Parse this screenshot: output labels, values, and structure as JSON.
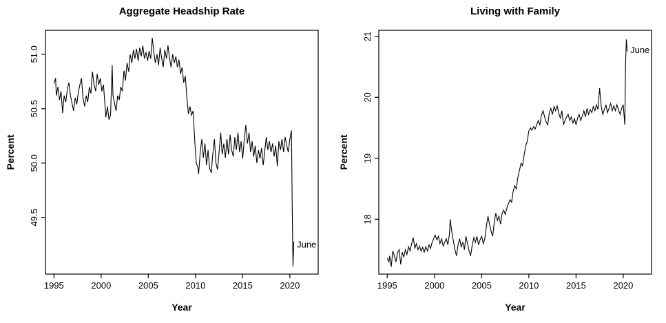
{
  "page": {
    "background": "#ffffff",
    "foreground": "#000000"
  },
  "chart_data": [
    {
      "type": "line",
      "title": "Aggregate Headship Rate",
      "xlabel": "Year",
      "ylabel": "Percent",
      "legend": null,
      "grid": false,
      "line_color": "#000000",
      "xlim": [
        1994.1,
        2023.0
      ],
      "ylim": [
        48.98,
        51.22
      ],
      "x_ticks": [
        1995,
        2000,
        2005,
        2010,
        2015,
        2020
      ],
      "x_tick_labels": [
        "1995",
        "2000",
        "2005",
        "2010",
        "2015",
        "2020"
      ],
      "y_ticks": [
        49.5,
        50.0,
        50.5,
        51.0
      ],
      "y_tick_labels": [
        "49.5",
        "50.0",
        "50.5",
        "51.0"
      ],
      "annotation": {
        "text": "June",
        "x": 2020.6,
        "y": 49.25
      },
      "points": [
        [
          1995.0,
          50.73
        ],
        [
          1995.17,
          50.78
        ],
        [
          1995.25,
          50.62
        ],
        [
          1995.42,
          50.7
        ],
        [
          1995.58,
          50.58
        ],
        [
          1995.75,
          50.66
        ],
        [
          1995.92,
          50.46
        ],
        [
          1996.08,
          50.62
        ],
        [
          1996.25,
          50.56
        ],
        [
          1996.42,
          50.68
        ],
        [
          1996.58,
          50.74
        ],
        [
          1996.75,
          50.62
        ],
        [
          1996.92,
          50.55
        ],
        [
          1997.08,
          50.48
        ],
        [
          1997.25,
          50.6
        ],
        [
          1997.42,
          50.54
        ],
        [
          1997.58,
          50.65
        ],
        [
          1997.75,
          50.72
        ],
        [
          1997.92,
          50.78
        ],
        [
          1998.08,
          50.6
        ],
        [
          1998.25,
          50.52
        ],
        [
          1998.42,
          50.62
        ],
        [
          1998.58,
          50.56
        ],
        [
          1998.75,
          50.7
        ],
        [
          1998.92,
          50.64
        ],
        [
          1999.08,
          50.84
        ],
        [
          1999.25,
          50.72
        ],
        [
          1999.42,
          50.66
        ],
        [
          1999.58,
          50.82
        ],
        [
          1999.75,
          50.72
        ],
        [
          1999.92,
          50.78
        ],
        [
          2000.08,
          50.66
        ],
        [
          2000.25,
          50.72
        ],
        [
          2000.33,
          50.62
        ],
        [
          2000.5,
          50.42
        ],
        [
          2000.67,
          50.52
        ],
        [
          2000.83,
          50.4
        ],
        [
          2001.0,
          50.44
        ],
        [
          2001.17,
          50.9
        ],
        [
          2001.25,
          50.62
        ],
        [
          2001.42,
          50.55
        ],
        [
          2001.58,
          50.48
        ],
        [
          2001.75,
          50.62
        ],
        [
          2001.92,
          50.58
        ],
        [
          2002.08,
          50.7
        ],
        [
          2002.25,
          50.66
        ],
        [
          2002.42,
          50.85
        ],
        [
          2002.58,
          50.76
        ],
        [
          2002.75,
          50.92
        ],
        [
          2002.92,
          50.84
        ],
        [
          2003.08,
          51.0
        ],
        [
          2003.25,
          50.92
        ],
        [
          2003.42,
          51.04
        ],
        [
          2003.58,
          50.96
        ],
        [
          2003.75,
          51.05
        ],
        [
          2003.92,
          50.94
        ],
        [
          2004.08,
          51.06
        ],
        [
          2004.25,
          50.98
        ],
        [
          2004.42,
          51.08
        ],
        [
          2004.58,
          50.96
        ],
        [
          2004.75,
          51.02
        ],
        [
          2004.92,
          50.94
        ],
        [
          2005.08,
          51.03
        ],
        [
          2005.25,
          50.96
        ],
        [
          2005.42,
          51.15
        ],
        [
          2005.58,
          51.02
        ],
        [
          2005.75,
          50.92
        ],
        [
          2005.92,
          51.0
        ],
        [
          2006.08,
          50.9
        ],
        [
          2006.25,
          51.06
        ],
        [
          2006.42,
          50.96
        ],
        [
          2006.58,
          50.88
        ],
        [
          2006.75,
          51.04
        ],
        [
          2006.92,
          50.96
        ],
        [
          2007.08,
          51.08
        ],
        [
          2007.25,
          50.96
        ],
        [
          2007.42,
          50.88
        ],
        [
          2007.58,
          51.0
        ],
        [
          2007.75,
          50.92
        ],
        [
          2007.92,
          50.98
        ],
        [
          2008.08,
          50.88
        ],
        [
          2008.25,
          50.95
        ],
        [
          2008.42,
          50.82
        ],
        [
          2008.58,
          50.88
        ],
        [
          2008.75,
          50.74
        ],
        [
          2008.92,
          50.8
        ],
        [
          2009.08,
          50.6
        ],
        [
          2009.25,
          50.45
        ],
        [
          2009.42,
          50.52
        ],
        [
          2009.58,
          50.44
        ],
        [
          2009.75,
          50.48
        ],
        [
          2009.92,
          50.2
        ],
        [
          2010.08,
          50.0
        ],
        [
          2010.25,
          49.96
        ],
        [
          2010.33,
          49.9
        ],
        [
          2010.5,
          50.1
        ],
        [
          2010.67,
          50.22
        ],
        [
          2010.83,
          50.05
        ],
        [
          2011.0,
          50.18
        ],
        [
          2011.17,
          49.98
        ],
        [
          2011.33,
          50.12
        ],
        [
          2011.5,
          49.95
        ],
        [
          2011.67,
          49.91
        ],
        [
          2011.83,
          50.08
        ],
        [
          2012.0,
          50.22
        ],
        [
          2012.17,
          50.0
        ],
        [
          2012.33,
          49.94
        ],
        [
          2012.5,
          50.1
        ],
        [
          2012.67,
          50.28
        ],
        [
          2012.83,
          50.08
        ],
        [
          2013.0,
          50.18
        ],
        [
          2013.17,
          50.05
        ],
        [
          2013.33,
          50.22
        ],
        [
          2013.5,
          50.08
        ],
        [
          2013.67,
          50.26
        ],
        [
          2013.83,
          50.12
        ],
        [
          2014.0,
          50.06
        ],
        [
          2014.17,
          50.24
        ],
        [
          2014.33,
          50.12
        ],
        [
          2014.5,
          50.28
        ],
        [
          2014.67,
          50.1
        ],
        [
          2014.83,
          50.2
        ],
        [
          2015.0,
          50.04
        ],
        [
          2015.17,
          50.22
        ],
        [
          2015.33,
          50.35
        ],
        [
          2015.5,
          50.18
        ],
        [
          2015.67,
          50.28
        ],
        [
          2015.83,
          50.1
        ],
        [
          2016.0,
          50.2
        ],
        [
          2016.17,
          50.06
        ],
        [
          2016.33,
          50.16
        ],
        [
          2016.5,
          50.0
        ],
        [
          2016.67,
          50.12
        ],
        [
          2016.83,
          50.04
        ],
        [
          2017.0,
          50.14
        ],
        [
          2017.17,
          49.98
        ],
        [
          2017.33,
          50.1
        ],
        [
          2017.5,
          50.24
        ],
        [
          2017.67,
          50.12
        ],
        [
          2017.83,
          50.2
        ],
        [
          2018.0,
          50.1
        ],
        [
          2018.17,
          50.18
        ],
        [
          2018.33,
          50.06
        ],
        [
          2018.5,
          50.16
        ],
        [
          2018.67,
          49.97
        ],
        [
          2018.83,
          50.2
        ],
        [
          2019.0,
          50.12
        ],
        [
          2019.17,
          50.22
        ],
        [
          2019.33,
          50.1
        ],
        [
          2019.5,
          50.24
        ],
        [
          2019.67,
          50.16
        ],
        [
          2019.83,
          50.1
        ],
        [
          2020.0,
          50.22
        ],
        [
          2020.17,
          50.3
        ],
        [
          2020.25,
          49.6
        ],
        [
          2020.33,
          49.05
        ],
        [
          2020.42,
          49.28
        ]
      ]
    },
    {
      "type": "line",
      "title": "Living with Family",
      "xlabel": "Year",
      "ylabel": "Percent",
      "legend": null,
      "grid": false,
      "line_color": "#000000",
      "xlim": [
        1994.1,
        2023.0
      ],
      "ylim": [
        17.1,
        21.1
      ],
      "x_ticks": [
        1995,
        2000,
        2005,
        2010,
        2015,
        2020
      ],
      "x_tick_labels": [
        "1995",
        "2000",
        "2005",
        "2010",
        "2015",
        "2020"
      ],
      "y_ticks": [
        18,
        19,
        20,
        21
      ],
      "y_tick_labels": [
        "18",
        "19",
        "20",
        "21"
      ],
      "annotation": {
        "text": "June",
        "x": 2020.6,
        "y": 20.77
      },
      "points": [
        [
          1995.0,
          17.36
        ],
        [
          1995.17,
          17.3
        ],
        [
          1995.25,
          17.4
        ],
        [
          1995.42,
          17.22
        ],
        [
          1995.58,
          17.48
        ],
        [
          1995.75,
          17.4
        ],
        [
          1995.92,
          17.3
        ],
        [
          1996.08,
          17.45
        ],
        [
          1996.25,
          17.5
        ],
        [
          1996.42,
          17.26
        ],
        [
          1996.58,
          17.46
        ],
        [
          1996.75,
          17.38
        ],
        [
          1996.92,
          17.5
        ],
        [
          1997.08,
          17.42
        ],
        [
          1997.25,
          17.55
        ],
        [
          1997.42,
          17.48
        ],
        [
          1997.58,
          17.6
        ],
        [
          1997.75,
          17.7
        ],
        [
          1997.92,
          17.52
        ],
        [
          1998.08,
          17.6
        ],
        [
          1998.25,
          17.5
        ],
        [
          1998.42,
          17.56
        ],
        [
          1998.58,
          17.48
        ],
        [
          1998.75,
          17.54
        ],
        [
          1998.92,
          17.46
        ],
        [
          1999.08,
          17.55
        ],
        [
          1999.25,
          17.48
        ],
        [
          1999.42,
          17.58
        ],
        [
          1999.58,
          17.52
        ],
        [
          1999.75,
          17.62
        ],
        [
          1999.92,
          17.68
        ],
        [
          2000.08,
          17.74
        ],
        [
          2000.25,
          17.66
        ],
        [
          2000.42,
          17.72
        ],
        [
          2000.58,
          17.6
        ],
        [
          2000.75,
          17.68
        ],
        [
          2000.92,
          17.56
        ],
        [
          2001.08,
          17.62
        ],
        [
          2001.25,
          17.68
        ],
        [
          2001.42,
          17.58
        ],
        [
          2001.58,
          17.75
        ],
        [
          2001.67,
          18.0
        ],
        [
          2001.83,
          17.8
        ],
        [
          2002.0,
          17.65
        ],
        [
          2002.17,
          17.5
        ],
        [
          2002.33,
          17.4
        ],
        [
          2002.5,
          17.58
        ],
        [
          2002.67,
          17.68
        ],
        [
          2002.83,
          17.55
        ],
        [
          2003.0,
          17.62
        ],
        [
          2003.17,
          17.5
        ],
        [
          2003.33,
          17.72
        ],
        [
          2003.5,
          17.6
        ],
        [
          2003.67,
          17.48
        ],
        [
          2003.83,
          17.4
        ],
        [
          2004.0,
          17.58
        ],
        [
          2004.17,
          17.7
        ],
        [
          2004.33,
          17.62
        ],
        [
          2004.5,
          17.72
        ],
        [
          2004.67,
          17.58
        ],
        [
          2004.83,
          17.66
        ],
        [
          2005.0,
          17.72
        ],
        [
          2005.17,
          17.6
        ],
        [
          2005.33,
          17.68
        ],
        [
          2005.5,
          17.88
        ],
        [
          2005.67,
          18.05
        ],
        [
          2005.83,
          17.92
        ],
        [
          2006.0,
          17.8
        ],
        [
          2006.17,
          17.72
        ],
        [
          2006.33,
          17.95
        ],
        [
          2006.5,
          18.1
        ],
        [
          2006.67,
          17.98
        ],
        [
          2006.83,
          18.05
        ],
        [
          2007.0,
          17.92
        ],
        [
          2007.17,
          18.1
        ],
        [
          2007.33,
          18.15
        ],
        [
          2007.5,
          18.08
        ],
        [
          2007.67,
          18.18
        ],
        [
          2007.83,
          18.25
        ],
        [
          2008.0,
          18.32
        ],
        [
          2008.17,
          18.28
        ],
        [
          2008.33,
          18.45
        ],
        [
          2008.5,
          18.55
        ],
        [
          2008.67,
          18.5
        ],
        [
          2008.83,
          18.68
        ],
        [
          2009.0,
          18.8
        ],
        [
          2009.17,
          18.92
        ],
        [
          2009.33,
          18.88
        ],
        [
          2009.5,
          19.05
        ],
        [
          2009.67,
          19.2
        ],
        [
          2009.83,
          19.28
        ],
        [
          2010.0,
          19.45
        ],
        [
          2010.17,
          19.5
        ],
        [
          2010.33,
          19.46
        ],
        [
          2010.5,
          19.52
        ],
        [
          2010.67,
          19.48
        ],
        [
          2010.83,
          19.55
        ],
        [
          2011.0,
          19.62
        ],
        [
          2011.17,
          19.55
        ],
        [
          2011.33,
          19.7
        ],
        [
          2011.5,
          19.78
        ],
        [
          2011.67,
          19.68
        ],
        [
          2011.83,
          19.6
        ],
        [
          2012.0,
          19.55
        ],
        [
          2012.17,
          19.75
        ],
        [
          2012.33,
          19.82
        ],
        [
          2012.5,
          19.72
        ],
        [
          2012.67,
          19.85
        ],
        [
          2012.83,
          19.78
        ],
        [
          2013.0,
          19.86
        ],
        [
          2013.17,
          19.74
        ],
        [
          2013.33,
          19.66
        ],
        [
          2013.5,
          19.78
        ],
        [
          2013.67,
          19.55
        ],
        [
          2013.83,
          19.62
        ],
        [
          2014.0,
          19.68
        ],
        [
          2014.17,
          19.72
        ],
        [
          2014.33,
          19.62
        ],
        [
          2014.5,
          19.68
        ],
        [
          2014.67,
          19.58
        ],
        [
          2014.83,
          19.65
        ],
        [
          2015.0,
          19.55
        ],
        [
          2015.17,
          19.66
        ],
        [
          2015.33,
          19.72
        ],
        [
          2015.5,
          19.62
        ],
        [
          2015.67,
          19.7
        ],
        [
          2015.83,
          19.78
        ],
        [
          2016.0,
          19.68
        ],
        [
          2016.17,
          19.82
        ],
        [
          2016.33,
          19.72
        ],
        [
          2016.5,
          19.8
        ],
        [
          2016.67,
          19.75
        ],
        [
          2016.83,
          19.85
        ],
        [
          2017.0,
          19.78
        ],
        [
          2017.17,
          19.88
        ],
        [
          2017.33,
          19.8
        ],
        [
          2017.5,
          20.15
        ],
        [
          2017.67,
          19.85
        ],
        [
          2017.83,
          19.72
        ],
        [
          2018.0,
          19.8
        ],
        [
          2018.17,
          19.88
        ],
        [
          2018.33,
          19.75
        ],
        [
          2018.5,
          19.82
        ],
        [
          2018.67,
          19.9
        ],
        [
          2018.83,
          19.78
        ],
        [
          2019.0,
          19.86
        ],
        [
          2019.17,
          19.78
        ],
        [
          2019.33,
          19.88
        ],
        [
          2019.5,
          19.8
        ],
        [
          2019.67,
          19.72
        ],
        [
          2019.83,
          19.82
        ],
        [
          2020.0,
          19.88
        ],
        [
          2020.17,
          19.55
        ],
        [
          2020.25,
          20.55
        ],
        [
          2020.33,
          20.95
        ],
        [
          2020.42,
          20.75
        ]
      ]
    }
  ]
}
